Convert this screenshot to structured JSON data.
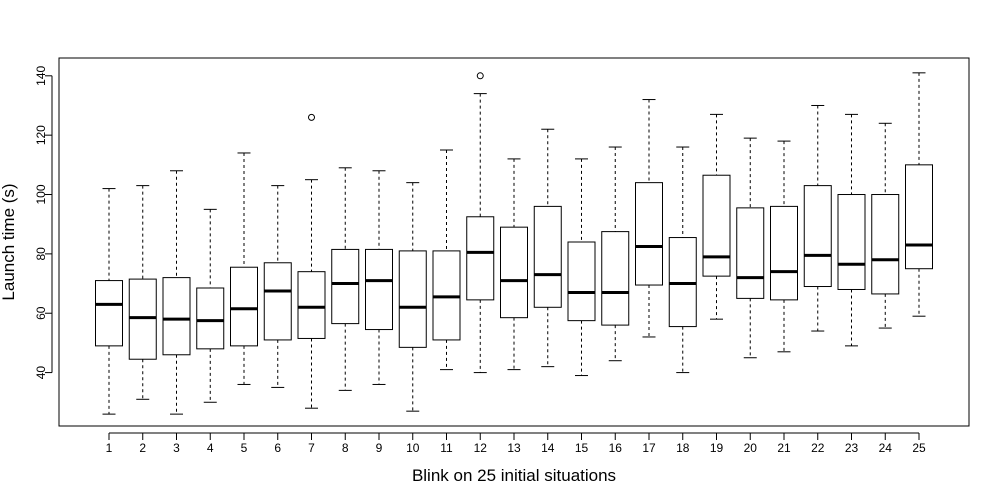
{
  "chart_data": {
    "type": "boxplot",
    "title": "",
    "xlabel": "Blink on 25 initial situations",
    "ylabel": "Launch time (s)",
    "categories": [
      "1",
      "2",
      "3",
      "4",
      "5",
      "6",
      "7",
      "8",
      "9",
      "10",
      "11",
      "12",
      "13",
      "14",
      "15",
      "16",
      "17",
      "18",
      "19",
      "20",
      "21",
      "22",
      "23",
      "24",
      "25"
    ],
    "ylim": [
      22,
      146
    ],
    "yticks": [
      40,
      60,
      80,
      100,
      120,
      140
    ],
    "grid": false,
    "legend": "none",
    "boxes": [
      {
        "min": 26,
        "q1": 49,
        "median": 63,
        "q3": 71,
        "max": 102,
        "outliers": []
      },
      {
        "min": 31,
        "q1": 44.5,
        "median": 58.5,
        "q3": 71.5,
        "max": 103,
        "outliers": []
      },
      {
        "min": 26,
        "q1": 46,
        "median": 58,
        "q3": 72,
        "max": 108,
        "outliers": []
      },
      {
        "min": 30,
        "q1": 48,
        "median": 57.5,
        "q3": 68.5,
        "max": 95,
        "outliers": []
      },
      {
        "min": 36,
        "q1": 49,
        "median": 61.5,
        "q3": 75.5,
        "max": 114,
        "outliers": []
      },
      {
        "min": 35,
        "q1": 51,
        "median": 67.5,
        "q3": 77,
        "max": 103,
        "outliers": []
      },
      {
        "min": 28,
        "q1": 51.5,
        "median": 62,
        "q3": 74,
        "max": 105,
        "outliers": [
          126
        ]
      },
      {
        "min": 34,
        "q1": 56.5,
        "median": 70,
        "q3": 81.5,
        "max": 109,
        "outliers": []
      },
      {
        "min": 36,
        "q1": 54.5,
        "median": 71,
        "q3": 81.5,
        "max": 108,
        "outliers": []
      },
      {
        "min": 27,
        "q1": 48.5,
        "median": 62,
        "q3": 81,
        "max": 104,
        "outliers": []
      },
      {
        "min": 41,
        "q1": 51,
        "median": 65.5,
        "q3": 81,
        "max": 115,
        "outliers": []
      },
      {
        "min": 40,
        "q1": 64.5,
        "median": 80.5,
        "q3": 92.5,
        "max": 134,
        "outliers": [
          140
        ]
      },
      {
        "min": 41,
        "q1": 58.5,
        "median": 71,
        "q3": 89,
        "max": 112,
        "outliers": []
      },
      {
        "min": 42,
        "q1": 62,
        "median": 73,
        "q3": 96,
        "max": 122,
        "outliers": []
      },
      {
        "min": 39,
        "q1": 57.5,
        "median": 67,
        "q3": 84,
        "max": 112,
        "outliers": []
      },
      {
        "min": 44,
        "q1": 56,
        "median": 67,
        "q3": 87.5,
        "max": 116,
        "outliers": []
      },
      {
        "min": 52,
        "q1": 69.5,
        "median": 82.5,
        "q3": 104,
        "max": 132,
        "outliers": []
      },
      {
        "min": 40,
        "q1": 55.5,
        "median": 70,
        "q3": 85.5,
        "max": 116,
        "outliers": []
      },
      {
        "min": 58,
        "q1": 72.5,
        "median": 79,
        "q3": 106.5,
        "max": 127,
        "outliers": []
      },
      {
        "min": 45,
        "q1": 65,
        "median": 72,
        "q3": 95.5,
        "max": 119,
        "outliers": []
      },
      {
        "min": 47,
        "q1": 64.5,
        "median": 74,
        "q3": 96,
        "max": 118,
        "outliers": []
      },
      {
        "min": 54,
        "q1": 69,
        "median": 79.5,
        "q3": 103,
        "max": 130,
        "outliers": []
      },
      {
        "min": 49,
        "q1": 68,
        "median": 76.5,
        "q3": 100,
        "max": 127,
        "outliers": []
      },
      {
        "min": 55,
        "q1": 66.5,
        "median": 78,
        "q3": 100,
        "max": 124,
        "outliers": []
      },
      {
        "min": 59,
        "q1": 75,
        "median": 83,
        "q3": 110,
        "max": 141,
        "outliers": []
      }
    ]
  }
}
